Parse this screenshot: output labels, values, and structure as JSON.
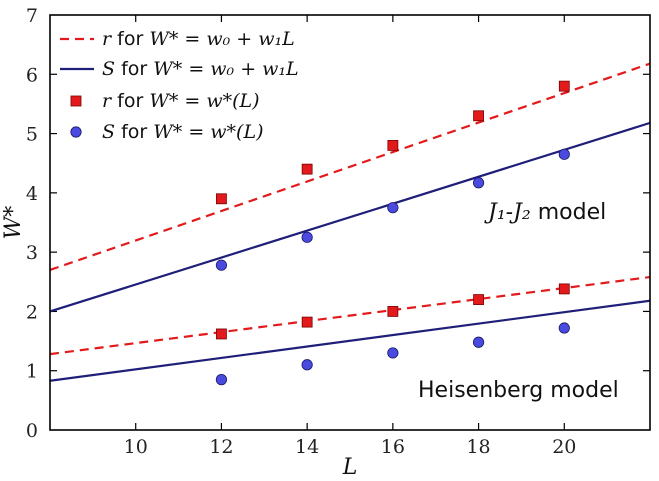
{
  "chart_data": {
    "type": "scatter",
    "xlabel": "L",
    "ylabel": "W*",
    "xlim": [
      8,
      22
    ],
    "ylim": [
      0,
      7
    ],
    "xticks": [
      10,
      12,
      14,
      16,
      18,
      20
    ],
    "yticks": [
      0,
      1,
      2,
      3,
      4,
      5,
      6,
      7
    ],
    "legend_position": "top-left",
    "legend": [
      {
        "symbol": "r",
        "text": " for ",
        "formula": "W* = w₀ + w₁L",
        "style": "dashed-line",
        "color": "#e31a1c"
      },
      {
        "symbol": "S",
        "text": " for ",
        "formula": "W* = w₀ + w₁L",
        "style": "solid-line",
        "color": "#1f1f7a"
      },
      {
        "symbol": "r",
        "text": " for ",
        "formula": "W* = w*(L)",
        "style": "square-marker",
        "color": "#e31a1c"
      },
      {
        "symbol": "S",
        "text": " for ",
        "formula": "W* = w*(L)",
        "style": "circle-marker",
        "color": "#4a4ae0"
      }
    ],
    "annotations": {
      "j1j2": {
        "label": "J₁-J₂ model",
        "math": "J₁-J₂",
        "rest": " model"
      },
      "heisenberg": {
        "label": "Heisenberg model"
      }
    },
    "series": [
      {
        "group": "J1-J2",
        "kind": "r",
        "points_x": [
          12,
          14,
          16,
          18,
          20
        ],
        "points_y": [
          3.9,
          4.4,
          4.8,
          5.3,
          5.8
        ],
        "fit": {
          "x": [
            8,
            22
          ],
          "y": [
            2.7,
            6.18
          ]
        }
      },
      {
        "group": "J1-J2",
        "kind": "S",
        "points_x": [
          12,
          14,
          16,
          18,
          20
        ],
        "points_y": [
          2.78,
          3.25,
          3.75,
          4.17,
          4.65
        ],
        "fit": {
          "x": [
            8,
            22
          ],
          "y": [
            2.0,
            5.18
          ]
        }
      },
      {
        "group": "Heisenberg",
        "kind": "r",
        "points_x": [
          12,
          14,
          16,
          18,
          20
        ],
        "points_y": [
          1.62,
          1.82,
          2.0,
          2.2,
          2.38
        ],
        "fit": {
          "x": [
            8,
            22
          ],
          "y": [
            1.28,
            2.58
          ]
        }
      },
      {
        "group": "Heisenberg",
        "kind": "S",
        "points_x": [
          12,
          14,
          16,
          18,
          20
        ],
        "points_y": [
          0.85,
          1.1,
          1.3,
          1.48,
          1.72
        ],
        "fit": {
          "x": [
            8,
            22
          ],
          "y": [
            0.83,
            2.18
          ]
        }
      }
    ],
    "colors": {
      "r": "#e31a1c",
      "S_line": "#1f1f7a",
      "S_marker": "#4a4ae0"
    }
  }
}
